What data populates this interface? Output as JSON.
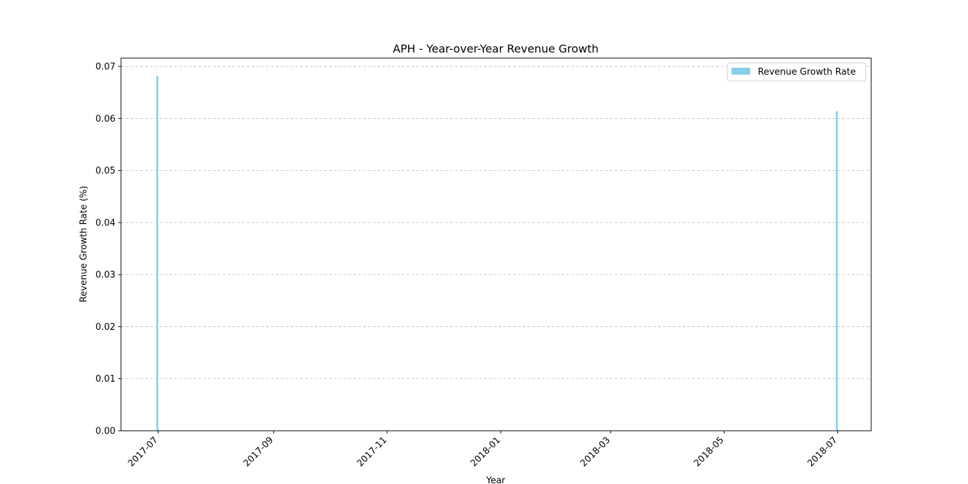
{
  "chart_data": {
    "type": "bar",
    "title": "APH - Year-over-Year Revenue Growth",
    "xlabel": "Year",
    "ylabel": "Revenue Growth Rate (%)",
    "series": [
      {
        "name": "Revenue Growth Rate",
        "color": "#87ceeb",
        "points": [
          {
            "x": "2017-06-30",
            "y": 0.0682
          },
          {
            "x": "2018-06-30",
            "y": 0.0614
          }
        ]
      }
    ],
    "xlim": [
      "2017-06-11",
      "2018-07-19"
    ],
    "ylim": [
      0,
      0.0716
    ],
    "x_ticks": [
      "2017-07",
      "2017-09",
      "2017-11",
      "2018-01",
      "2018-03",
      "2018-05",
      "2018-07"
    ],
    "x_tick_dates": [
      "2017-07-01",
      "2017-09-01",
      "2017-11-01",
      "2018-01-01",
      "2018-03-01",
      "2018-05-01",
      "2018-07-01"
    ],
    "y_ticks": [
      "0.00",
      "0.01",
      "0.02",
      "0.03",
      "0.04",
      "0.05",
      "0.06",
      "0.07"
    ],
    "y_tick_values": [
      0,
      0.01,
      0.02,
      0.03,
      0.04,
      0.05,
      0.06,
      0.07
    ],
    "grid": "y-dashed",
    "legend_position": "top-right"
  }
}
